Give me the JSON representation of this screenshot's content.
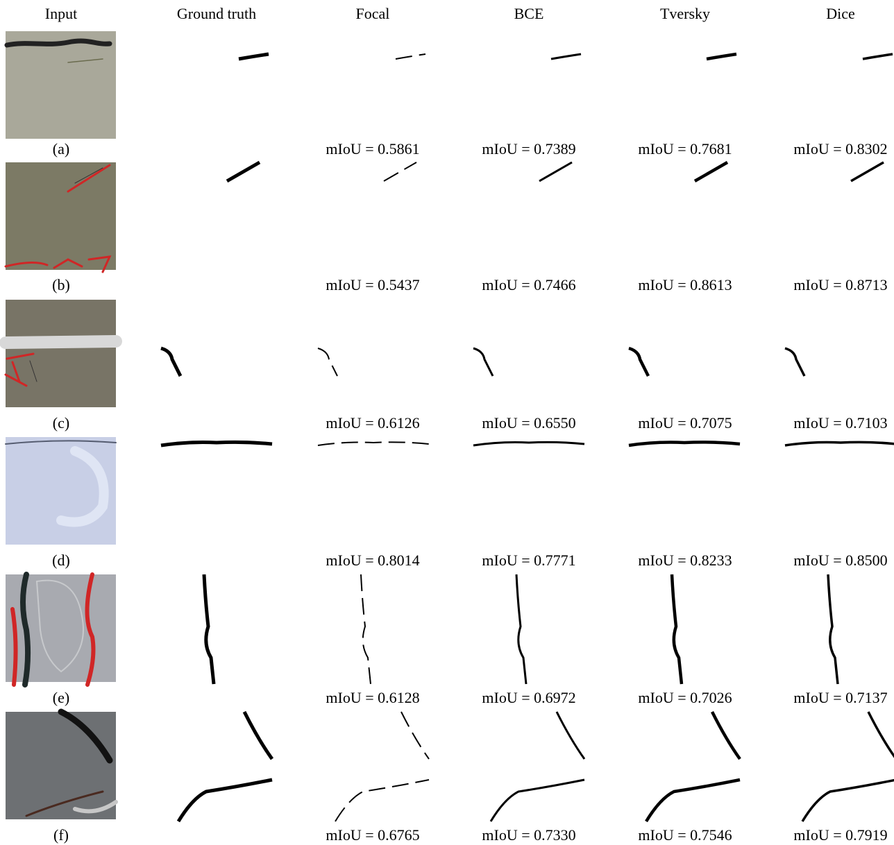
{
  "header": {
    "columns": [
      "Input",
      "Ground truth",
      "Focal",
      "BCE",
      "Tversky",
      "Dice"
    ]
  },
  "rows": [
    {
      "label": "(a)",
      "scores": [
        "mIoU = 0.5861",
        "mIoU = 0.7389",
        "mIoU = 0.7681",
        "mIoU = 0.8302"
      ]
    },
    {
      "label": "(b)",
      "scores": [
        "mIoU = 0.5437",
        "mIoU = 0.7466",
        "mIoU = 0.8613",
        "mIoU = 0.8713"
      ]
    },
    {
      "label": "(c)",
      "scores": [
        "mIoU = 0.6126",
        "mIoU = 0.6550",
        "mIoU = 0.7075",
        "mIoU = 0.7103"
      ]
    },
    {
      "label": "(d)",
      "scores": [
        "mIoU = 0.8014",
        "mIoU = 0.7771",
        "mIoU = 0.8233",
        "mIoU = 0.8500"
      ]
    },
    {
      "label": "(e)",
      "scores": [
        "mIoU = 0.6128",
        "mIoU = 0.6972",
        "mIoU = 0.7026",
        "mIoU = 0.7137"
      ]
    },
    {
      "label": "(f)",
      "scores": [
        "mIoU = 0.6765",
        "mIoU = 0.7330",
        "mIoU = 0.7546",
        "mIoU = 0.7919"
      ]
    }
  ]
}
